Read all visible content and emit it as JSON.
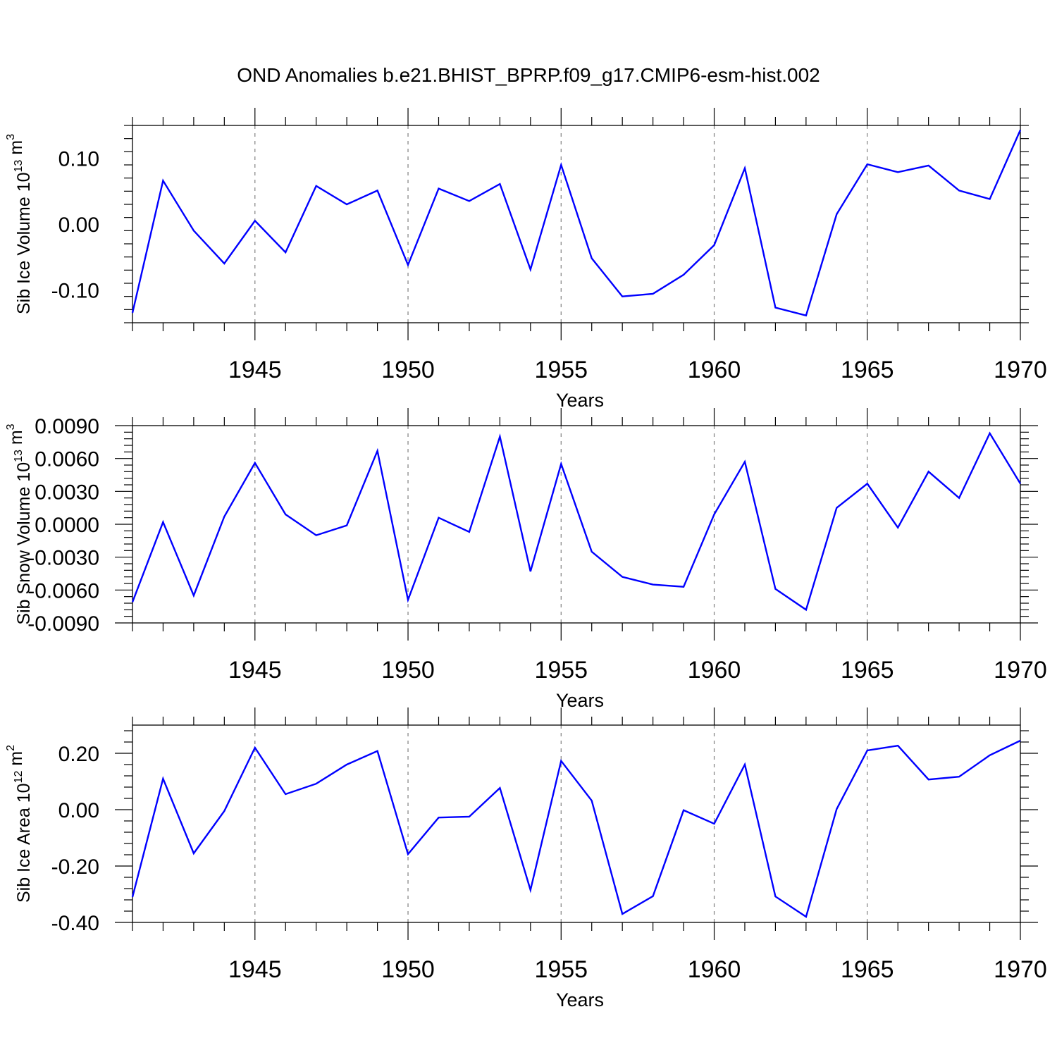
{
  "title": "OND Anomalies b.e21.BHIST_BPRP.f09_g17.CMIP6-esm-hist.002",
  "line_color": "#0000ff",
  "grid_color": "#808080",
  "chart_data": [
    {
      "type": "line",
      "name": "sib-ice-volume",
      "ylabel": "Sib Ice Volume",
      "ylabel_base": "10",
      "ylabel_exp": "13",
      "ylabel_unit": "m",
      "ylabel_unit_exp": "3",
      "xlabel": "Years",
      "xlim": [
        1941,
        1970
      ],
      "ylim": [
        -0.15,
        0.15
      ],
      "yticks": [
        -0.1,
        0.0,
        0.1
      ],
      "ytick_labels": [
        "-0.10",
        "0.00",
        "0.10"
      ],
      "xticks": [
        1945,
        1950,
        1955,
        1960,
        1965,
        1970
      ],
      "xtick_labels": [
        "1945",
        "1950",
        "1955",
        "1960",
        "1965",
        "1970"
      ],
      "grid_x": [
        1945,
        1950,
        1955,
        1960,
        1965
      ],
      "x": [
        1941,
        1942,
        1943,
        1944,
        1945,
        1946,
        1947,
        1948,
        1949,
        1950,
        1951,
        1952,
        1953,
        1954,
        1955,
        1956,
        1957,
        1958,
        1959,
        1960,
        1961,
        1962,
        1963,
        1964,
        1965,
        1966,
        1967,
        1968,
        1969,
        1970
      ],
      "values": [
        -0.135,
        0.066,
        -0.01,
        -0.06,
        0.005,
        -0.043,
        0.058,
        0.03,
        0.051,
        -0.062,
        0.054,
        0.035,
        0.061,
        -0.069,
        0.09,
        -0.052,
        -0.11,
        -0.106,
        -0.077,
        -0.032,
        0.085,
        -0.127,
        -0.139,
        0.015,
        0.091,
        0.079,
        0.089,
        0.051,
        0.038,
        0.143
      ]
    },
    {
      "type": "line",
      "name": "sib-snow-volume",
      "ylabel": "Sib Snow Volume",
      "ylabel_base": "10",
      "ylabel_exp": "13",
      "ylabel_unit": "m",
      "ylabel_unit_exp": "3",
      "xlabel": "Years",
      "xlim": [
        1941,
        1970
      ],
      "ylim": [
        -0.009,
        0.009
      ],
      "yticks": [
        -0.009,
        -0.006,
        -0.003,
        0.0,
        0.003,
        0.006,
        0.009
      ],
      "ytick_labels": [
        "-0.0090",
        "-0.0060",
        "-0.0030",
        "0.0000",
        "0.0030",
        "0.0060",
        "0.0090"
      ],
      "xticks": [
        1945,
        1950,
        1955,
        1960,
        1965,
        1970
      ],
      "xtick_labels": [
        "1945",
        "1950",
        "1955",
        "1960",
        "1965",
        "1970"
      ],
      "grid_x": [
        1945,
        1950,
        1955,
        1960,
        1965
      ],
      "x": [
        1941,
        1942,
        1943,
        1944,
        1945,
        1946,
        1947,
        1948,
        1949,
        1950,
        1951,
        1952,
        1953,
        1954,
        1955,
        1956,
        1957,
        1958,
        1959,
        1960,
        1961,
        1962,
        1963,
        1964,
        1965,
        1966,
        1967,
        1968,
        1969,
        1970
      ],
      "values": [
        -0.0071,
        0.0002,
        -0.0065,
        0.0007,
        0.0056,
        0.0009,
        -0.001,
        -0.0001,
        0.0067,
        -0.0069,
        0.0006,
        -0.0007,
        0.008,
        -0.0043,
        0.0055,
        -0.0025,
        -0.0048,
        -0.0055,
        -0.0057,
        0.0009,
        0.0057,
        -0.0059,
        -0.0078,
        0.0015,
        0.0037,
        -0.0003,
        0.0048,
        0.0024,
        0.0083,
        0.0037
      ]
    },
    {
      "type": "line",
      "name": "sib-ice-area",
      "ylabel": "Sib Ice Area",
      "ylabel_base": "10",
      "ylabel_exp": "12",
      "ylabel_unit": "m",
      "ylabel_unit_exp": "2",
      "xlabel": "Years",
      "xlim": [
        1941,
        1970
      ],
      "ylim": [
        -0.4,
        0.3
      ],
      "yticks": [
        -0.4,
        -0.2,
        0.0,
        0.2
      ],
      "ytick_labels": [
        "-0.40",
        "-0.20",
        "0.00",
        "0.20"
      ],
      "xticks": [
        1945,
        1950,
        1955,
        1960,
        1965,
        1970
      ],
      "xtick_labels": [
        "1945",
        "1950",
        "1955",
        "1960",
        "1965",
        "1970"
      ],
      "grid_x": [
        1945,
        1950,
        1955,
        1960,
        1965
      ],
      "x": [
        1941,
        1942,
        1943,
        1944,
        1945,
        1946,
        1947,
        1948,
        1949,
        1950,
        1951,
        1952,
        1953,
        1954,
        1955,
        1956,
        1957,
        1958,
        1959,
        1960,
        1961,
        1962,
        1963,
        1964,
        1965,
        1966,
        1967,
        1968,
        1969,
        1970
      ],
      "values": [
        -0.31,
        0.11,
        -0.155,
        -0.005,
        0.22,
        0.055,
        0.092,
        0.16,
        0.208,
        -0.158,
        -0.028,
        -0.025,
        0.077,
        -0.285,
        0.173,
        0.032,
        -0.37,
        -0.307,
        -0.002,
        -0.05,
        0.16,
        -0.308,
        -0.38,
        0.002,
        0.21,
        0.227,
        0.107,
        0.117,
        0.193,
        0.245
      ]
    }
  ]
}
